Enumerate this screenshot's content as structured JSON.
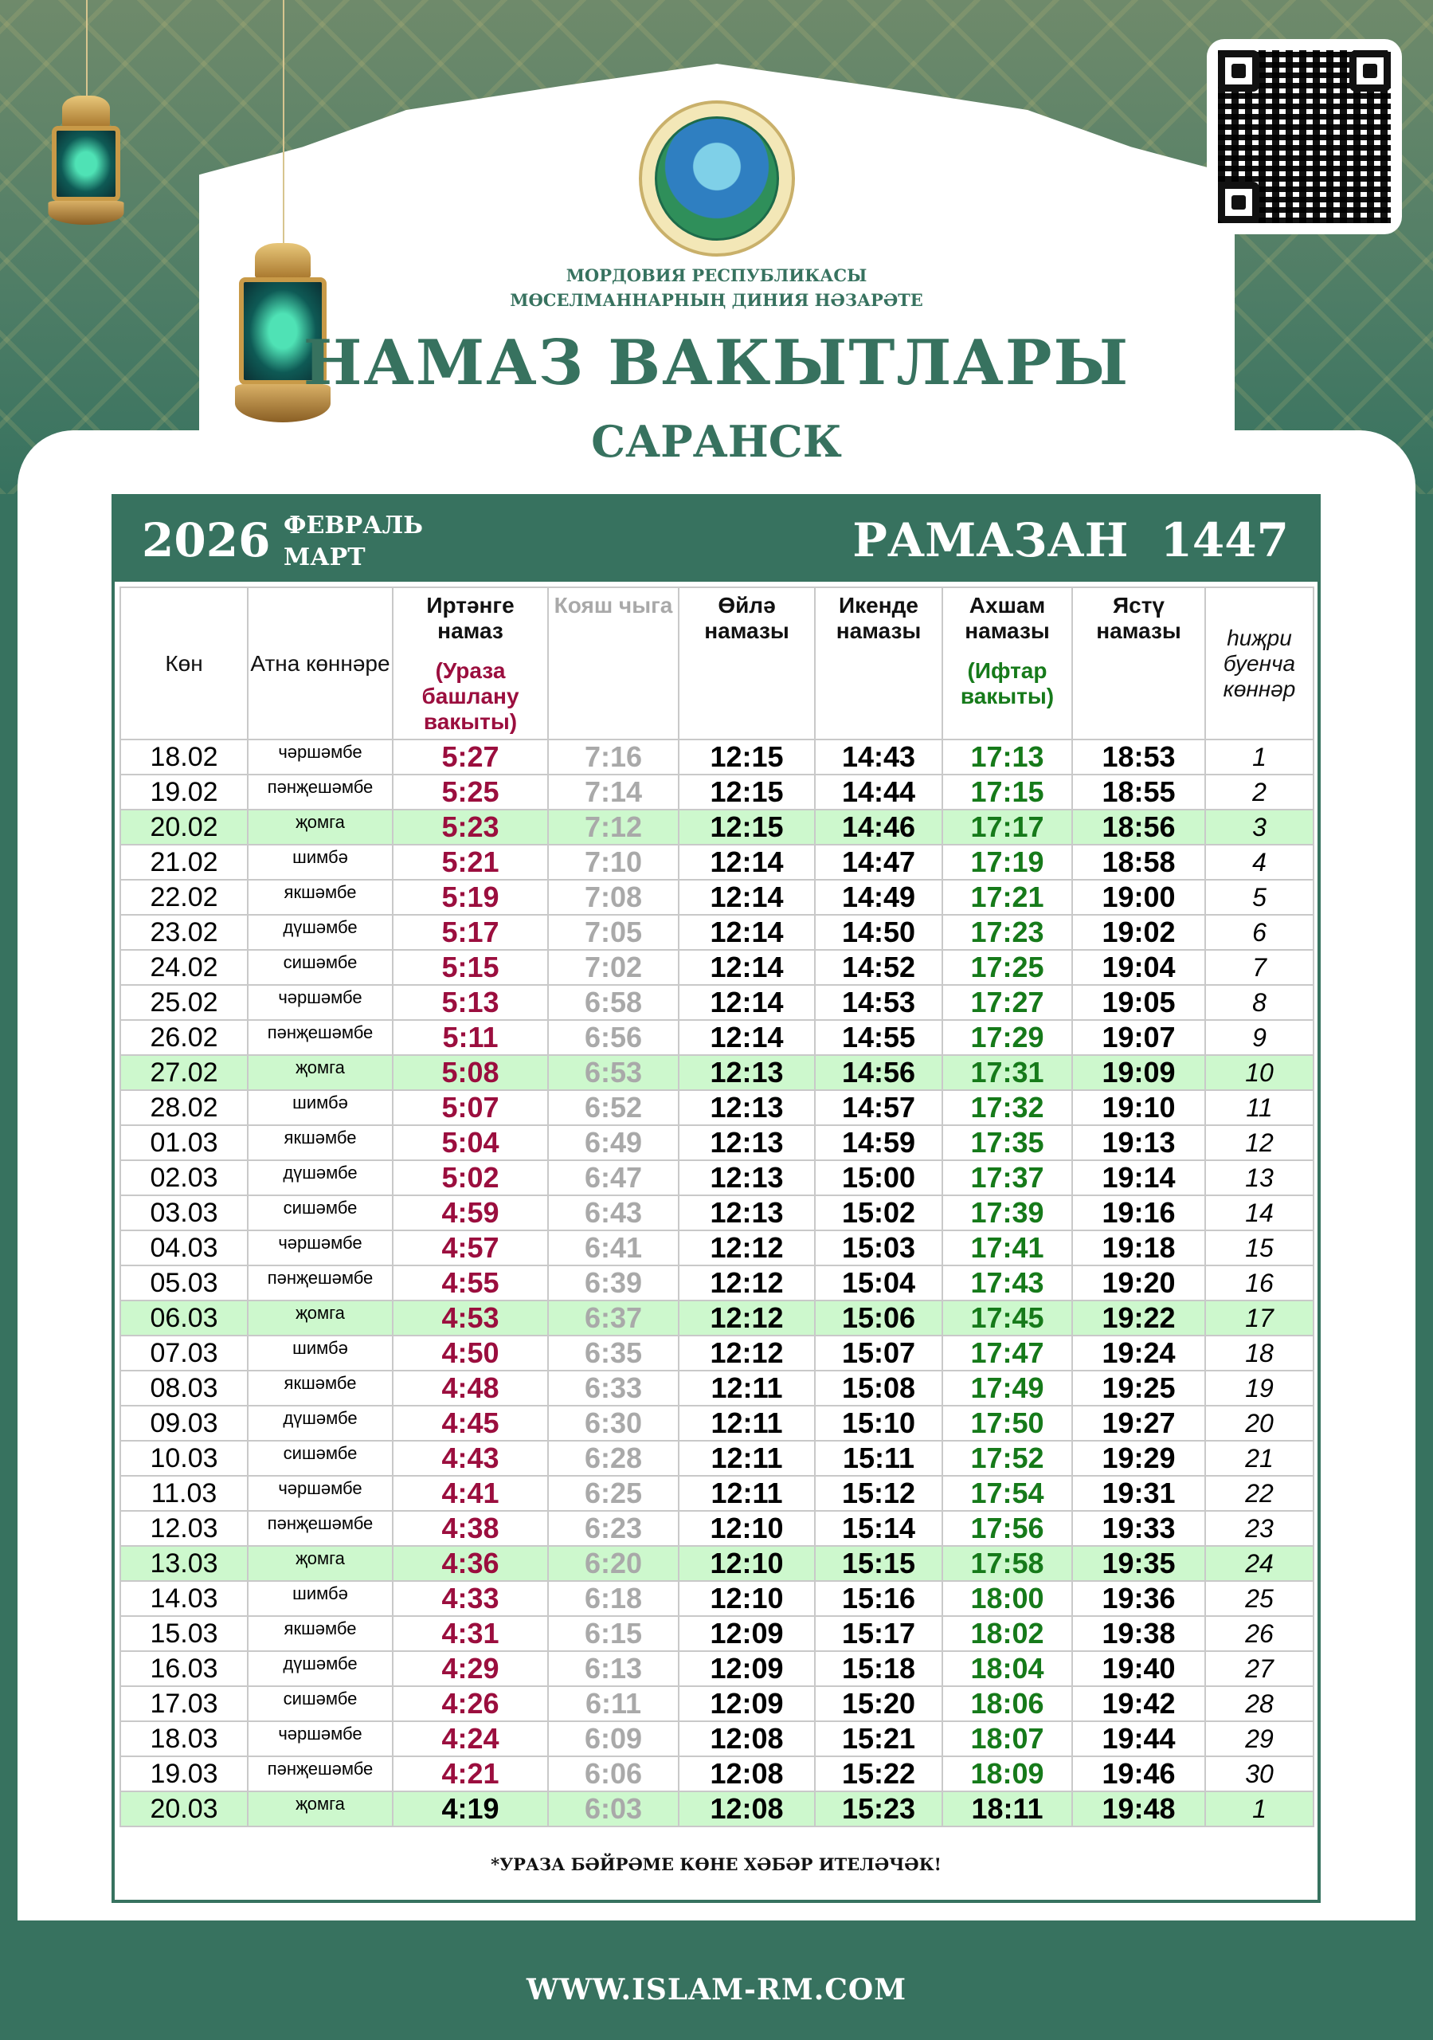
{
  "header": {
    "org_line1": "МОРДОВИЯ РЕСПУБЛИКАСЫ",
    "org_line2": "МӨСЕЛМАННАРНЫҢ ДИНИЯ НӘЗАРӘТЕ",
    "title": "НАМАЗ ВАКЫТЛАРЫ",
    "city": "САРАНСК",
    "logo_icon": "muftiate-emblem-icon",
    "qr_icon": "qr-code-icon"
  },
  "band": {
    "year": "2026",
    "month1": "ФЕВРАЛЬ",
    "month2": "МАРТ",
    "hijri": "РАМАЗАН 1447"
  },
  "columns": {
    "day": "Көн",
    "weekday": "Атна көннәре",
    "fajr": "Иртәнге намаз",
    "fajr_sub": "(Ураза башлану вакыты)",
    "sunrise": "Кояш чыга",
    "dhuhr": "Өйлә намазы",
    "asr": "Икенде намазы",
    "maghrib": "Ахшам намазы",
    "maghrib_sub": "(Ифтар вакыты)",
    "isha": "Ястү намазы",
    "hijri": "һиҗри буенча көннәр"
  },
  "colors": {
    "brand": "#37725f",
    "fajr": "#9b0e3e",
    "sunrise": "#a9a9a9",
    "iftar": "#167a1a",
    "friday_row": "#cdf8cd"
  },
  "rows": [
    {
      "date": "18.02",
      "weekday": "чәршәмбе",
      "fajr": "5:27",
      "sunrise": "7:16",
      "dhuhr": "12:15",
      "asr": "14:43",
      "maghrib": "17:13",
      "isha": "18:53",
      "hijri": "1",
      "fasting": true
    },
    {
      "date": "19.02",
      "weekday": "пәнҗешәмбе",
      "fajr": "5:25",
      "sunrise": "7:14",
      "dhuhr": "12:15",
      "asr": "14:44",
      "maghrib": "17:15",
      "isha": "18:55",
      "hijri": "2",
      "fasting": true
    },
    {
      "date": "20.02",
      "weekday": "җомга",
      "fajr": "5:23",
      "sunrise": "7:12",
      "dhuhr": "12:15",
      "asr": "14:46",
      "maghrib": "17:17",
      "isha": "18:56",
      "hijri": "3",
      "fasting": true
    },
    {
      "date": "21.02",
      "weekday": "шимбә",
      "fajr": "5:21",
      "sunrise": "7:10",
      "dhuhr": "12:14",
      "asr": "14:47",
      "maghrib": "17:19",
      "isha": "18:58",
      "hijri": "4",
      "fasting": true
    },
    {
      "date": "22.02",
      "weekday": "якшәмбе",
      "fajr": "5:19",
      "sunrise": "7:08",
      "dhuhr": "12:14",
      "asr": "14:49",
      "maghrib": "17:21",
      "isha": "19:00",
      "hijri": "5",
      "fasting": true
    },
    {
      "date": "23.02",
      "weekday": "дүшәмбе",
      "fajr": "5:17",
      "sunrise": "7:05",
      "dhuhr": "12:14",
      "asr": "14:50",
      "maghrib": "17:23",
      "isha": "19:02",
      "hijri": "6",
      "fasting": true
    },
    {
      "date": "24.02",
      "weekday": "сишәмбе",
      "fajr": "5:15",
      "sunrise": "7:02",
      "dhuhr": "12:14",
      "asr": "14:52",
      "maghrib": "17:25",
      "isha": "19:04",
      "hijri": "7",
      "fasting": true
    },
    {
      "date": "25.02",
      "weekday": "чәршәмбе",
      "fajr": "5:13",
      "sunrise": "6:58",
      "dhuhr": "12:14",
      "asr": "14:53",
      "maghrib": "17:27",
      "isha": "19:05",
      "hijri": "8",
      "fasting": true
    },
    {
      "date": "26.02",
      "weekday": "пәнҗешәмбе",
      "fajr": "5:11",
      "sunrise": "6:56",
      "dhuhr": "12:14",
      "asr": "14:55",
      "maghrib": "17:29",
      "isha": "19:07",
      "hijri": "9",
      "fasting": true
    },
    {
      "date": "27.02",
      "weekday": "җомга",
      "fajr": "5:08",
      "sunrise": "6:53",
      "dhuhr": "12:13",
      "asr": "14:56",
      "maghrib": "17:31",
      "isha": "19:09",
      "hijri": "10",
      "fasting": true
    },
    {
      "date": "28.02",
      "weekday": "шимбә",
      "fajr": "5:07",
      "sunrise": "6:52",
      "dhuhr": "12:13",
      "asr": "14:57",
      "maghrib": "17:32",
      "isha": "19:10",
      "hijri": "11",
      "fasting": true
    },
    {
      "date": "01.03",
      "weekday": "якшәмбе",
      "fajr": "5:04",
      "sunrise": "6:49",
      "dhuhr": "12:13",
      "asr": "14:59",
      "maghrib": "17:35",
      "isha": "19:13",
      "hijri": "12",
      "fasting": true
    },
    {
      "date": "02.03",
      "weekday": "дүшәмбе",
      "fajr": "5:02",
      "sunrise": "6:47",
      "dhuhr": "12:13",
      "asr": "15:00",
      "maghrib": "17:37",
      "isha": "19:14",
      "hijri": "13",
      "fasting": true
    },
    {
      "date": "03.03",
      "weekday": "сишәмбе",
      "fajr": "4:59",
      "sunrise": "6:43",
      "dhuhr": "12:13",
      "asr": "15:02",
      "maghrib": "17:39",
      "isha": "19:16",
      "hijri": "14",
      "fasting": true
    },
    {
      "date": "04.03",
      "weekday": "чәршәмбе",
      "fajr": "4:57",
      "sunrise": "6:41",
      "dhuhr": "12:12",
      "asr": "15:03",
      "maghrib": "17:41",
      "isha": "19:18",
      "hijri": "15",
      "fasting": true
    },
    {
      "date": "05.03",
      "weekday": "пәнҗешәмбе",
      "fajr": "4:55",
      "sunrise": "6:39",
      "dhuhr": "12:12",
      "asr": "15:04",
      "maghrib": "17:43",
      "isha": "19:20",
      "hijri": "16",
      "fasting": true
    },
    {
      "date": "06.03",
      "weekday": "җомга",
      "fajr": "4:53",
      "sunrise": "6:37",
      "dhuhr": "12:12",
      "asr": "15:06",
      "maghrib": "17:45",
      "isha": "19:22",
      "hijri": "17",
      "fasting": true
    },
    {
      "date": "07.03",
      "weekday": "шимбә",
      "fajr": "4:50",
      "sunrise": "6:35",
      "dhuhr": "12:12",
      "asr": "15:07",
      "maghrib": "17:47",
      "isha": "19:24",
      "hijri": "18",
      "fasting": true
    },
    {
      "date": "08.03",
      "weekday": "якшәмбе",
      "fajr": "4:48",
      "sunrise": "6:33",
      "dhuhr": "12:11",
      "asr": "15:08",
      "maghrib": "17:49",
      "isha": "19:25",
      "hijri": "19",
      "fasting": true
    },
    {
      "date": "09.03",
      "weekday": "дүшәмбе",
      "fajr": "4:45",
      "sunrise": "6:30",
      "dhuhr": "12:11",
      "asr": "15:10",
      "maghrib": "17:50",
      "isha": "19:27",
      "hijri": "20",
      "fasting": true
    },
    {
      "date": "10.03",
      "weekday": "сишәмбе",
      "fajr": "4:43",
      "sunrise": "6:28",
      "dhuhr": "12:11",
      "asr": "15:11",
      "maghrib": "17:52",
      "isha": "19:29",
      "hijri": "21",
      "fasting": true
    },
    {
      "date": "11.03",
      "weekday": "чәршәмбе",
      "fajr": "4:41",
      "sunrise": "6:25",
      "dhuhr": "12:11",
      "asr": "15:12",
      "maghrib": "17:54",
      "isha": "19:31",
      "hijri": "22",
      "fasting": true
    },
    {
      "date": "12.03",
      "weekday": "пәнҗешәмбе",
      "fajr": "4:38",
      "sunrise": "6:23",
      "dhuhr": "12:10",
      "asr": "15:14",
      "maghrib": "17:56",
      "isha": "19:33",
      "hijri": "23",
      "fasting": true
    },
    {
      "date": "13.03",
      "weekday": "җомга",
      "fajr": "4:36",
      "sunrise": "6:20",
      "dhuhr": "12:10",
      "asr": "15:15",
      "maghrib": "17:58",
      "isha": "19:35",
      "hijri": "24",
      "fasting": true
    },
    {
      "date": "14.03",
      "weekday": "шимбә",
      "fajr": "4:33",
      "sunrise": "6:18",
      "dhuhr": "12:10",
      "asr": "15:16",
      "maghrib": "18:00",
      "isha": "19:36",
      "hijri": "25",
      "fasting": true
    },
    {
      "date": "15.03",
      "weekday": "якшәмбе",
      "fajr": "4:31",
      "sunrise": "6:15",
      "dhuhr": "12:09",
      "asr": "15:17",
      "maghrib": "18:02",
      "isha": "19:38",
      "hijri": "26",
      "fasting": true
    },
    {
      "date": "16.03",
      "weekday": "дүшәмбе",
      "fajr": "4:29",
      "sunrise": "6:13",
      "dhuhr": "12:09",
      "asr": "15:18",
      "maghrib": "18:04",
      "isha": "19:40",
      "hijri": "27",
      "fasting": true
    },
    {
      "date": "17.03",
      "weekday": "сишәмбе",
      "fajr": "4:26",
      "sunrise": "6:11",
      "dhuhr": "12:09",
      "asr": "15:20",
      "maghrib": "18:06",
      "isha": "19:42",
      "hijri": "28",
      "fasting": true
    },
    {
      "date": "18.03",
      "weekday": "чәршәмбе",
      "fajr": "4:24",
      "sunrise": "6:09",
      "dhuhr": "12:08",
      "asr": "15:21",
      "maghrib": "18:07",
      "isha": "19:44",
      "hijri": "29",
      "fasting": true
    },
    {
      "date": "19.03",
      "weekday": "пәнҗешәмбе",
      "fajr": "4:21",
      "sunrise": "6:06",
      "dhuhr": "12:08",
      "asr": "15:22",
      "maghrib": "18:09",
      "isha": "19:46",
      "hijri": "30",
      "fasting": true
    },
    {
      "date": "20.03",
      "weekday": "җомга",
      "fajr": "4:19",
      "sunrise": "6:03",
      "dhuhr": "12:08",
      "asr": "15:23",
      "maghrib": "18:11",
      "isha": "19:48",
      "hijri": "1",
      "fasting": false
    }
  ],
  "note": "*УРАЗА БӘЙРӘМЕ КӨНЕ ХӘБӘР ИТЕЛӘЧӘК!",
  "footer": {
    "url": "WWW.ISLAM-RM.COM"
  }
}
